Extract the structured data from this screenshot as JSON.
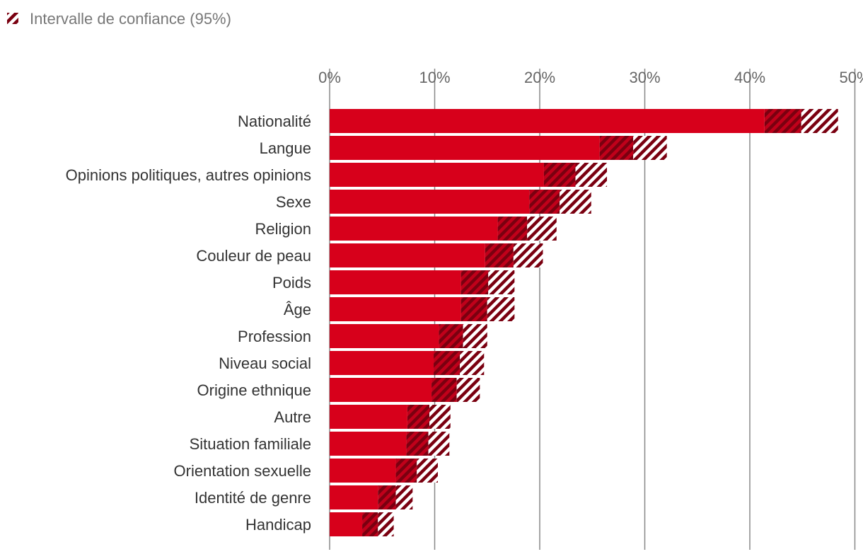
{
  "legend": {
    "label": "Intervalle de confiance (95%)"
  },
  "colors": {
    "bar": "#d7001b",
    "ci_dark": "#7a0010",
    "grid": "#888888"
  },
  "chart_data": {
    "type": "bar",
    "orientation": "horizontal",
    "x_tick_labels": [
      "0%",
      "10%",
      "20%",
      "30%",
      "40%",
      "50%"
    ],
    "xlim": [
      0,
      50
    ],
    "unit": "%",
    "grid": true,
    "legend_position": "top-left",
    "categories": [
      "Nationalité",
      "Langue",
      "Opinions politiques, autres opinions",
      "Sexe",
      "Religion",
      "Couleur de peau",
      "Poids",
      "Âge",
      "Profession",
      "Niveau social",
      "Origine ethnique",
      "Autre",
      "Situation familiale",
      "Orientation sexuelle",
      "Identité de genre",
      "Handicap"
    ],
    "values": [
      44.9,
      28.9,
      23.4,
      21.9,
      18.8,
      17.5,
      15.1,
      15.0,
      12.7,
      12.4,
      12.1,
      9.5,
      9.4,
      8.3,
      6.3,
      4.6
    ],
    "ci_lower": [
      41.4,
      25.7,
      20.4,
      19.0,
      16.0,
      14.8,
      12.5,
      12.5,
      10.4,
      9.9,
      9.7,
      7.4,
      7.3,
      6.3,
      4.6,
      3.1
    ],
    "ci_upper": [
      48.4,
      32.1,
      26.4,
      24.9,
      21.6,
      20.3,
      17.6,
      17.6,
      15.0,
      14.7,
      14.3,
      11.5,
      11.4,
      10.3,
      7.9,
      6.1
    ]
  }
}
